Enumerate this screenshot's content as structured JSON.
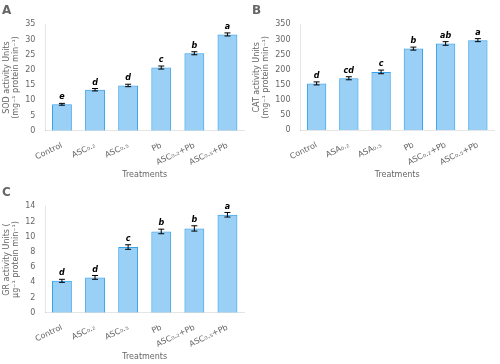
{
  "chart_data": [
    {
      "type": "bar",
      "title": "A",
      "categories": [
        "Control",
        "ASC₀.₂",
        "ASC₀.₅",
        "Pb",
        "ASC₀.₂+Pb",
        "ASC₀.₅+Pb"
      ],
      "values": [
        8.7,
        13.5,
        14.9,
        20.8,
        25.5,
        31.7
      ],
      "errors": [
        0.3,
        0.4,
        0.4,
        0.5,
        0.5,
        0.5
      ],
      "annotations": [
        "e",
        "d",
        "d",
        "c",
        "b",
        "a"
      ],
      "xlabel": "Treatments",
      "ylabel": "SOD activity Units (mg⁻¹ protein min⁻¹)",
      "ylim": [
        0,
        35
      ],
      "yticks": [
        0,
        5,
        10,
        15,
        20,
        25,
        30,
        35
      ],
      "grid": false
    },
    {
      "type": "bar",
      "title": "B",
      "categories": [
        "Control",
        "ASA₀.₂",
        "ASA₀.₅",
        "Pb",
        "ASC₀.₂+Pb",
        "ASC₀.₅+Pb"
      ],
      "values": [
        155,
        172,
        193,
        270,
        287,
        298
      ],
      "errors": [
        5,
        5,
        6,
        5,
        6,
        5
      ],
      "annotations": [
        "d",
        "cd",
        "c",
        "b",
        "ab",
        "a"
      ],
      "xlabel": "Treatments",
      "ylabel": "CAT activity Units (mg⁻¹ protein min⁻¹)",
      "ylim": [
        0,
        350
      ],
      "yticks": [
        0,
        50,
        100,
        150,
        200,
        250,
        300,
        350
      ],
      "grid": false
    },
    {
      "type": "bar",
      "title": "C",
      "categories": [
        "Control",
        "ASC₀.₂",
        "ASC₀.₅",
        "Pb",
        "ASC₀.₂+Pb",
        "ASC₀.₅+Pb"
      ],
      "values": [
        4.2,
        4.65,
        8.65,
        10.7,
        11.1,
        12.9
      ],
      "errors": [
        0.2,
        0.25,
        0.3,
        0.3,
        0.35,
        0.3
      ],
      "annotations": [
        "d",
        "d",
        "c",
        "b",
        "b",
        "a"
      ],
      "xlabel": "Treatments",
      "ylabel": "GR activity Units ( μg⁻¹ protein min⁻¹)",
      "ylim": [
        0,
        14
      ],
      "yticks": [
        0,
        2,
        4,
        6,
        8,
        10,
        12,
        14
      ],
      "grid": false
    }
  ]
}
